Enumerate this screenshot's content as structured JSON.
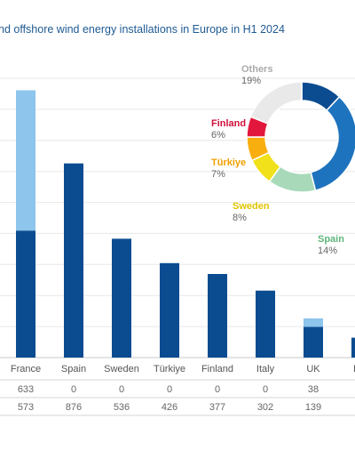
{
  "title": "nd offshore wind energy installations in Europe in H1 2024",
  "chart_data": [
    {
      "type": "bar",
      "stacked": true,
      "categories": [
        "France",
        "Spain",
        "Sweden",
        "Türkiye",
        "Finland",
        "Italy",
        "UK",
        "Lith"
      ],
      "series": [
        {
          "values": [
            573,
            876,
            536,
            426,
            377,
            302,
            139,
            90
          ],
          "color": "#0b4c91"
        },
        {
          "values": [
            633,
            0,
            0,
            0,
            0,
            0,
            38,
            0
          ],
          "color": "#8ec5ec"
        }
      ],
      "table_rows": [
        [
          "633",
          "0",
          "0",
          "0",
          "0",
          "0",
          "38",
          ""
        ],
        [
          "573",
          "876",
          "536",
          "426",
          "377",
          "302",
          "139",
          ""
        ]
      ],
      "grid": true
    },
    {
      "type": "pie",
      "donut": true,
      "slices": [
        {
          "label": "",
          "pct_label": "",
          "value": 12,
          "color": "#0b4c91"
        },
        {
          "label": "",
          "pct_label": "",
          "value": 34,
          "color": "#1e73be"
        },
        {
          "label": "Spain",
          "pct_label": "14%",
          "value": 14,
          "color": "#a8d9b9",
          "label_color": "#5fb57b"
        },
        {
          "label": "Sweden",
          "pct_label": "8%",
          "value": 8,
          "color": "#f1e11a",
          "label_color": "#e0c400"
        },
        {
          "label": "Türkiye",
          "pct_label": "7%",
          "value": 7,
          "color": "#f9ae10",
          "label_color": "#f0a000"
        },
        {
          "label": "Finland",
          "pct_label": "6%",
          "value": 6,
          "color": "#e2173d",
          "label_color": "#d0103a"
        },
        {
          "label": "Others",
          "pct_label": "19%",
          "value": 19,
          "color": "#e9e9e9",
          "label_color": "#aaaaaa"
        }
      ]
    }
  ]
}
